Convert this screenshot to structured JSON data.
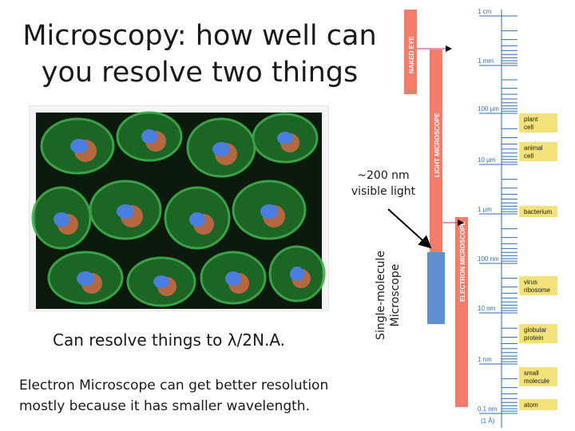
{
  "slide": {
    "title_line1": "Microscopy: how well can",
    "title_line2": "you resolve two things",
    "resolve_text": "Can resolve things to λ/2N.A.",
    "electron_note": "Electron Microscope can get better resolution mostly because it has smaller wavelength.",
    "visible_note_line1": "~200 nm",
    "visible_note_line2": "visible light",
    "single_molecule_line1": "Single-molecule",
    "single_molecule_line2": "Microscope"
  },
  "scale": {
    "ticks": [
      "1 cm",
      "1 mm",
      "100 μm",
      "10 μm",
      "1 μm",
      "100 nm",
      "10 nm",
      "1 nm",
      "0.1 nm"
    ],
    "bottom_sub": "(1 Å)",
    "bars": {
      "naked_eye": "NAKED EYE",
      "light": "LIGHT MICROSCOPE",
      "electron": "ELECTRON MICROSCOPE"
    },
    "objects": [
      {
        "label1": "plant",
        "label2": "cell"
      },
      {
        "label1": "animal",
        "label2": "cell"
      },
      {
        "label1": "bacterium",
        "label2": ""
      },
      {
        "label1": "virus",
        "label2": "ribosome"
      },
      {
        "label1": "globular",
        "label2": "protein"
      },
      {
        "label1": "small",
        "label2": "molecule"
      },
      {
        "label1": "atom",
        "label2": ""
      }
    ],
    "colors": {
      "bar": "#f47c6a",
      "single_molecule": "#5f8fd0",
      "tick": "#2e6fb7",
      "label_box": "#f3e27a"
    }
  }
}
